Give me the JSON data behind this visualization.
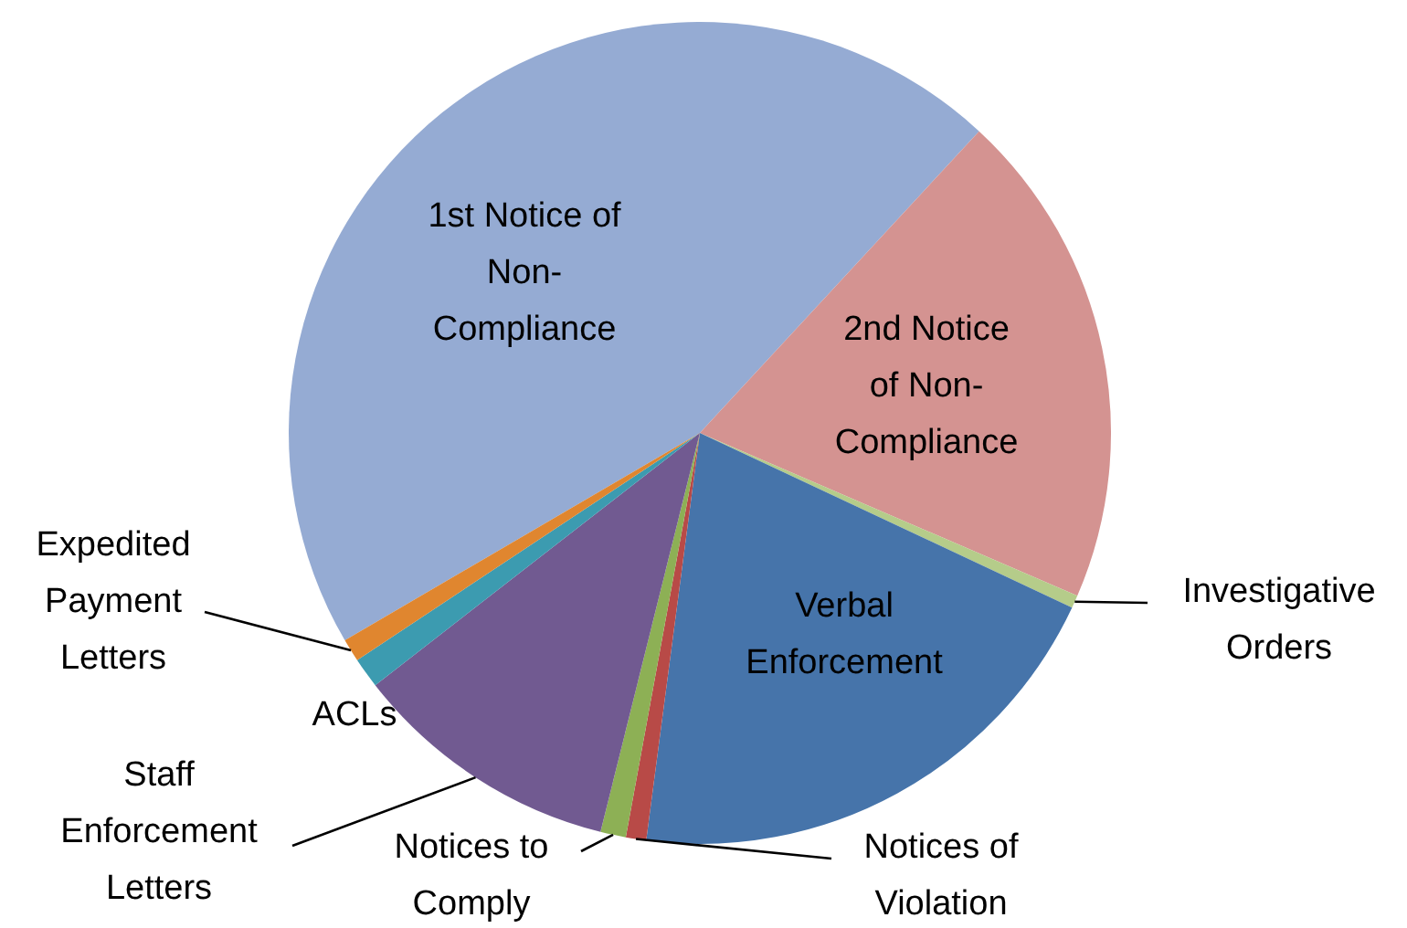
{
  "chart_data": {
    "type": "pie",
    "categories": [
      "1st Notice of Non-Compliance",
      "2nd Notice of Non-Compliance",
      "Investigative Orders",
      "Verbal Enforcement",
      "Notices of Violation",
      "Notices to Comply",
      "Staff Enforcement Letters",
      "ACLs",
      "Expedited Payment Letters"
    ],
    "values": [
      45.3,
      19.6,
      0.5,
      20.1,
      0.8,
      1.0,
      10.6,
      1.2,
      0.9
    ],
    "colors": [
      "#95abd3",
      "#d49391",
      "#b5cc8a",
      "#4674aa",
      "#b84a47",
      "#8db055",
      "#715a91",
      "#3c9bb0",
      "#e0862f"
    ],
    "legend": false
  }
}
